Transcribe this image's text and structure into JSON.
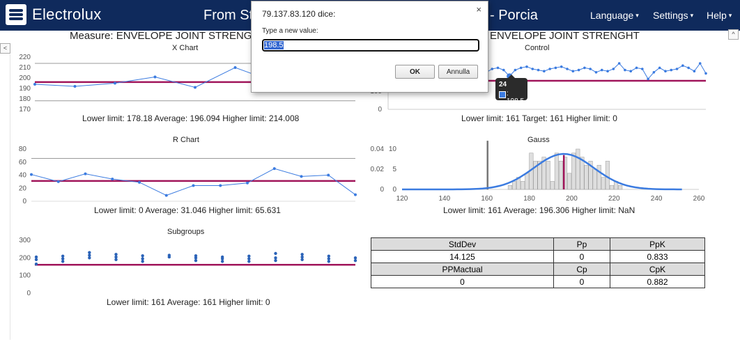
{
  "navbar": {
    "brand": "Electrolux",
    "title_left": "From St",
    "title_right": "- Porcia",
    "menu": [
      "Language",
      "Settings",
      "Help"
    ]
  },
  "subheader": {
    "left": "Measure: ENVELOPE JOINT STRENGHT",
    "right": "ENVELOPE JOINT STRENGHT"
  },
  "xchart": {
    "title": "X Chart",
    "caption": "Lower limit: 178.18    Average: 196.094    Higher limit: 214.008",
    "y_ticks": [
      "220",
      "210",
      "200",
      "190",
      "180",
      "170"
    ]
  },
  "control": {
    "title": "Control",
    "caption": "Lower limit: 161    Target: 161    Higher limit: 0",
    "y_ticks": [
      "100",
      "0"
    ]
  },
  "rchart": {
    "title": "R Chart",
    "caption": "Lower limit: 0    Average: 31.046    Higher limit: 65.631",
    "y_ticks": [
      "80",
      "60",
      "40",
      "20",
      "0"
    ]
  },
  "gauss": {
    "title": "Gauss",
    "caption": "Lower limit: 161    Average: 196.306    Higher limit: NaN",
    "y_ticks_left": [
      "0.04",
      "0.02",
      "0"
    ],
    "y_ticks_right": [
      "10",
      "5",
      "0"
    ],
    "x_ticks": [
      "120",
      "140",
      "160",
      "180",
      "200",
      "220",
      "240",
      "260"
    ]
  },
  "subgroups": {
    "title": "Subgroups",
    "caption": "Lower limit: 161    Average: 161    Higher limit: 0",
    "y_ticks": [
      "300",
      "200",
      "100",
      "0"
    ]
  },
  "stats": {
    "header1": [
      "StdDev",
      "Pp",
      "PpK"
    ],
    "row1": [
      "14.125",
      "0",
      "0.833"
    ],
    "header2": [
      "PPMactual",
      "Cp",
      "CpK"
    ],
    "row2": [
      "0",
      "0",
      "0.882"
    ]
  },
  "dialog": {
    "title": "79.137.83.120 dice:",
    "prompt": "Type a new value:",
    "value": "198.5",
    "ok": "OK",
    "cancel": "Annulla",
    "close": "×"
  },
  "tooltip": {
    "title": "24",
    "value": ": 198.5"
  },
  "colors": {
    "navbar": "#0f2a5c",
    "series": "#3b7be0",
    "limit": "#a0145a",
    "grid": "#999999"
  },
  "chart_data": [
    {
      "type": "line",
      "title": "X Chart",
      "ylim": [
        170,
        220
      ],
      "values": [
        194,
        192,
        195,
        201,
        191,
        210,
        196,
        193,
        188
      ],
      "average": 196.094,
      "lower_limit": 178.18,
      "higher_limit": 214.008
    },
    {
      "type": "line",
      "title": "Control",
      "values": [
        205,
        204,
        203,
        202,
        206,
        204,
        205,
        207,
        206,
        205,
        203,
        202,
        204,
        205,
        206,
        204,
        203,
        202,
        205,
        206,
        204,
        198.5,
        204,
        206,
        207,
        205,
        204,
        203,
        205,
        206,
        207,
        205,
        203,
        204,
        206,
        205,
        202,
        204,
        203,
        205,
        210,
        204,
        203,
        206,
        205,
        196,
        202,
        206,
        203,
        204,
        205,
        208,
        206,
        203,
        210,
        201
      ],
      "target": 161
    },
    {
      "type": "line",
      "title": "R Chart",
      "ylim": [
        0,
        80
      ],
      "values": [
        41,
        30,
        42,
        34,
        29,
        9,
        24,
        24,
        28,
        50,
        38,
        40,
        10
      ],
      "average": 31.046,
      "lower_limit": 0,
      "higher_limit": 65.631
    },
    {
      "type": "bar",
      "title": "Gauss",
      "x_range": [
        120,
        260
      ],
      "bins": [
        [
          160,
          12
        ],
        [
          170,
          1
        ],
        [
          172,
          2
        ],
        [
          174,
          3
        ],
        [
          176,
          2
        ],
        [
          178,
          4
        ],
        [
          180,
          9
        ],
        [
          182,
          7
        ],
        [
          184,
          7
        ],
        [
          186,
          8
        ],
        [
          188,
          7
        ],
        [
          190,
          2
        ],
        [
          192,
          9
        ],
        [
          194,
          7
        ],
        [
          196,
          8
        ],
        [
          198,
          4
        ],
        [
          200,
          9
        ],
        [
          202,
          10
        ],
        [
          204,
          8
        ],
        [
          206,
          6
        ],
        [
          208,
          7
        ],
        [
          210,
          5
        ],
        [
          212,
          6
        ],
        [
          214,
          3
        ],
        [
          216,
          7
        ],
        [
          218,
          1
        ],
        [
          220,
          2
        ],
        [
          222,
          1
        ]
      ],
      "curve_mean": 196.306,
      "curve_std": 14.125
    },
    {
      "type": "scatter",
      "title": "Subgroups",
      "ylim": [
        0,
        300
      ],
      "groups": [
        [
          190,
          205,
          165
        ],
        [
          180,
          195,
          210
        ],
        [
          200,
          215,
          230
        ],
        [
          190,
          205,
          220
        ],
        [
          180,
          195,
          212
        ],
        [
          205,
          215
        ],
        [
          185,
          200,
          212
        ],
        [
          180,
          195,
          205
        ],
        [
          180,
          195,
          210
        ],
        [
          185,
          200,
          225
        ],
        [
          190,
          205,
          220
        ],
        [
          180,
          195,
          210
        ],
        [
          200,
          185
        ]
      ],
      "limit": 161
    }
  ]
}
